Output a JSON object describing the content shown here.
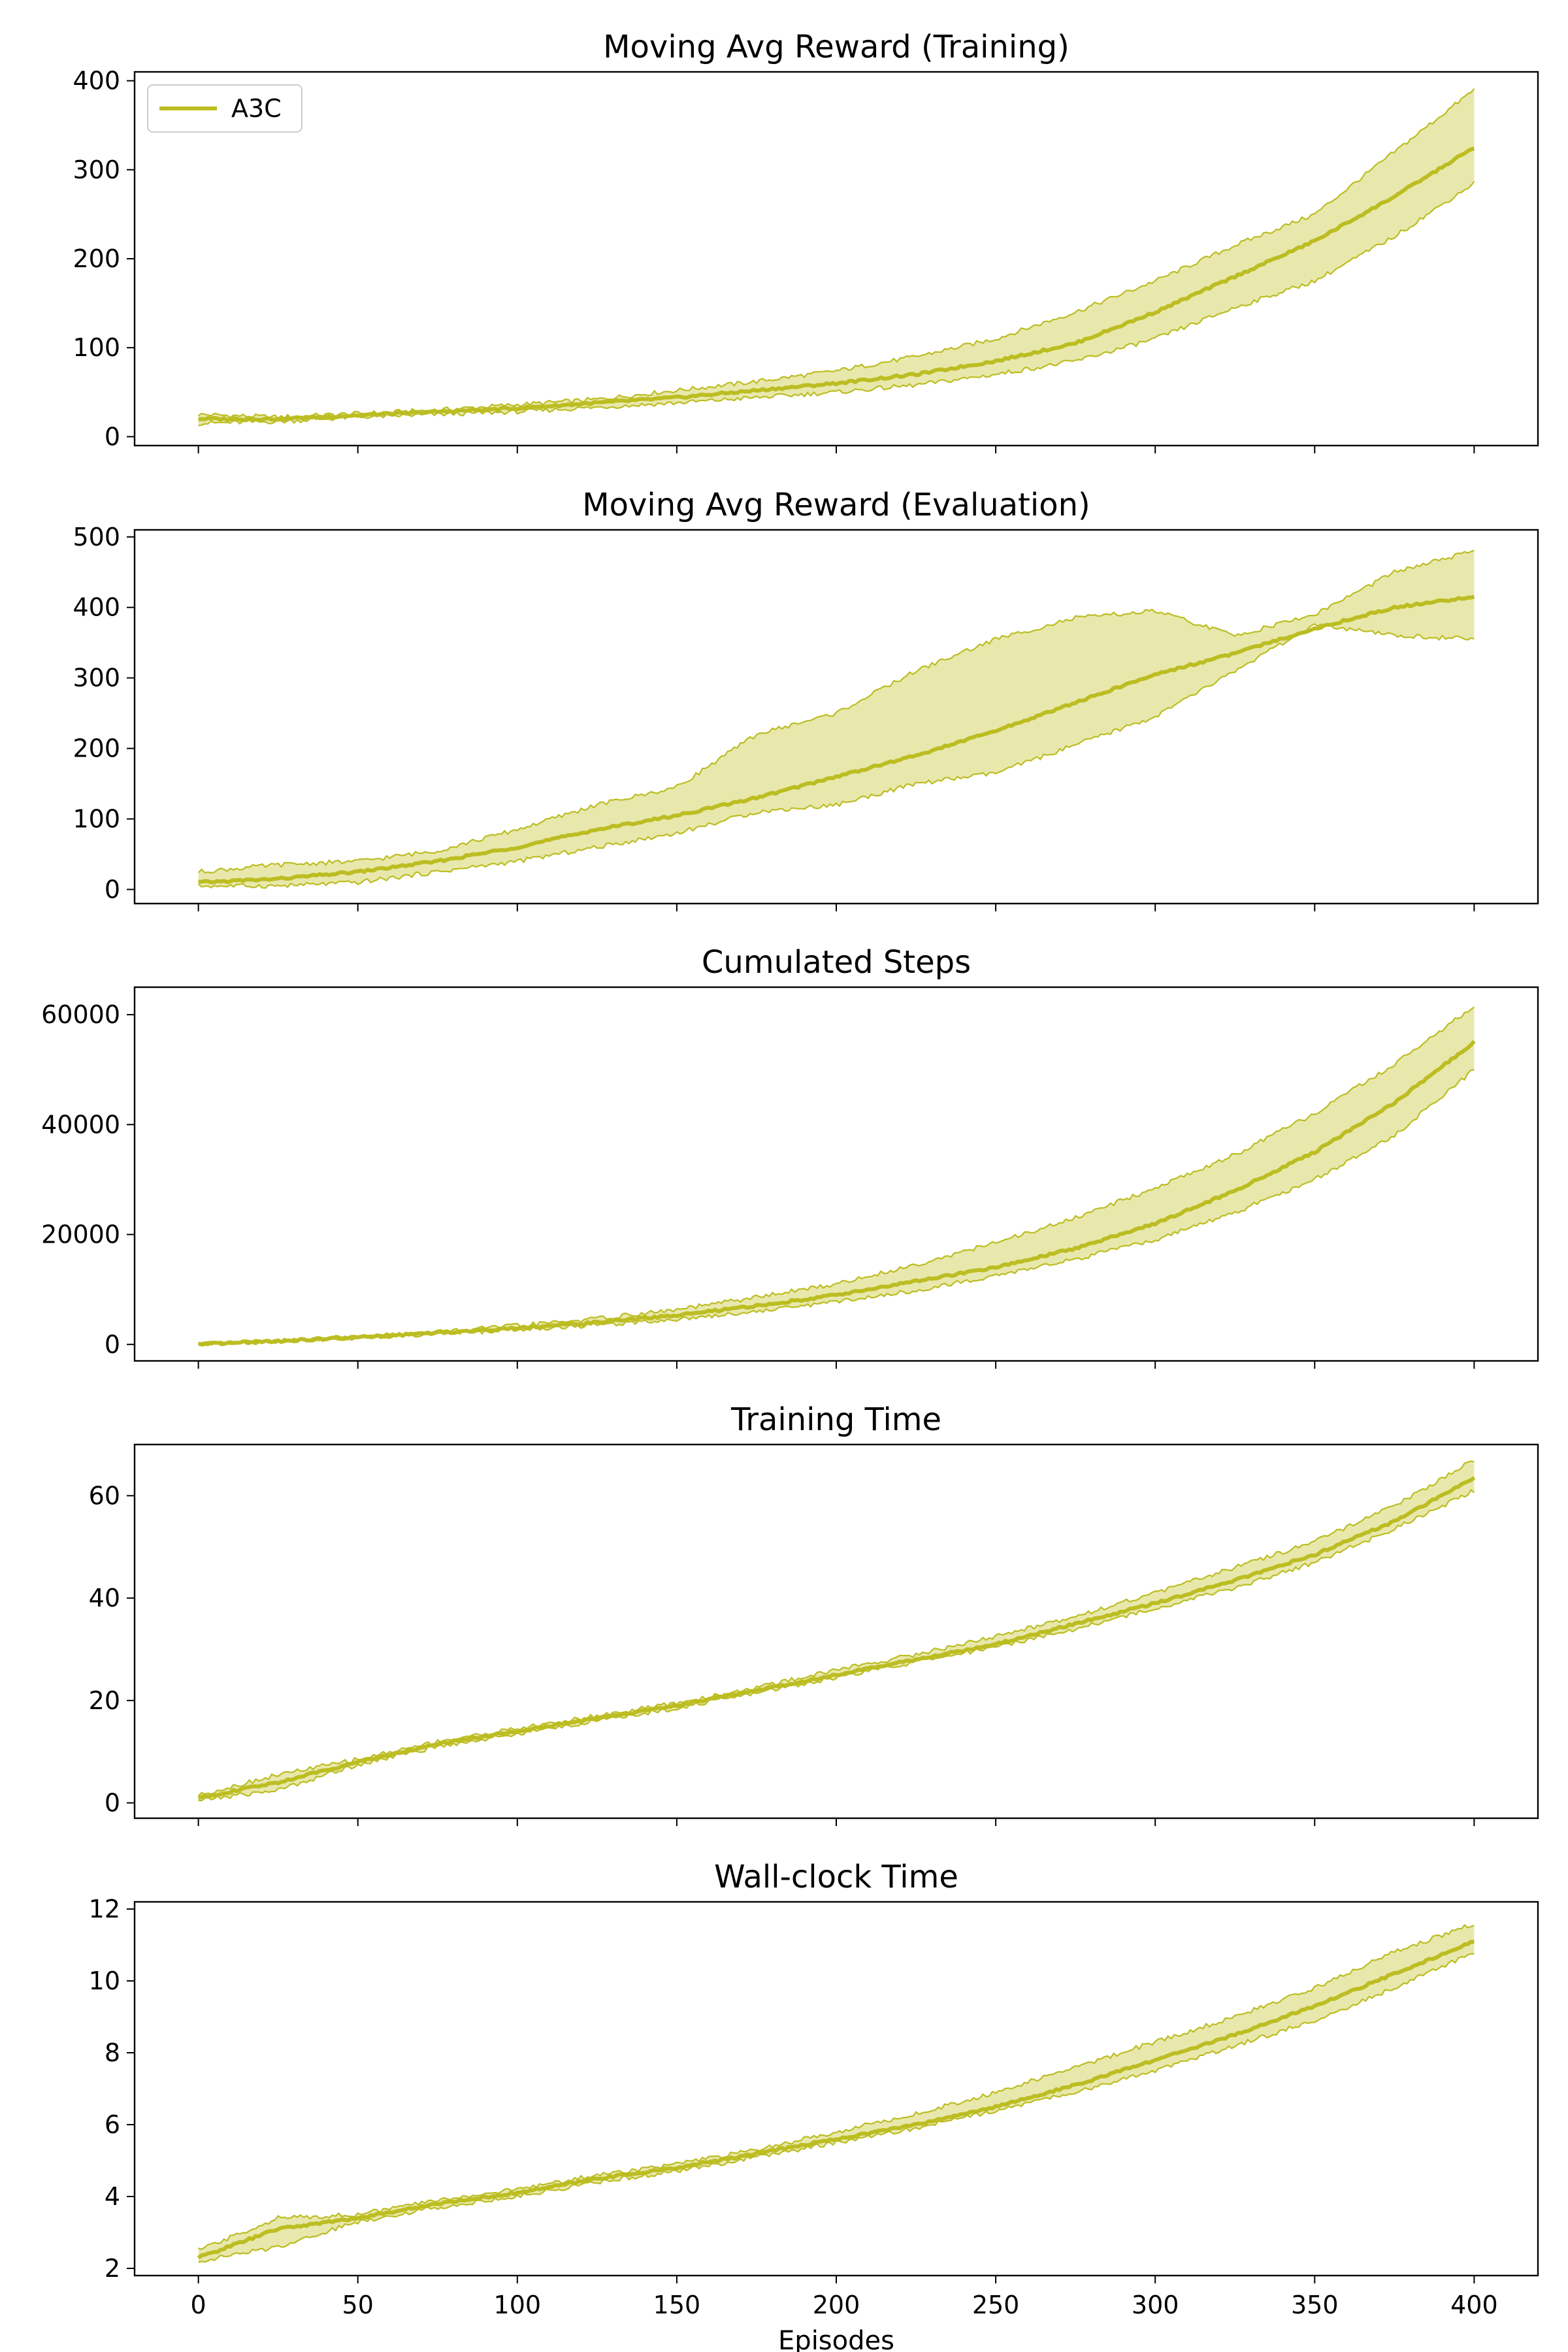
{
  "colors": {
    "series": "#bcbd22",
    "band": "#e8e8ad",
    "axis": "#000000"
  },
  "xlabel": "Episodes",
  "chart_data": [
    {
      "type": "line",
      "title": "Moving Avg Reward (Training)",
      "xlim": [
        -20,
        420
      ],
      "ylim": [
        -10,
        410
      ],
      "xticks": [
        0,
        50,
        100,
        150,
        200,
        250,
        300,
        350,
        400
      ],
      "yticks": [
        0,
        100,
        200,
        300,
        400
      ],
      "legend": {
        "location": "upper-left",
        "entries": [
          "A3C"
        ]
      },
      "series": [
        {
          "name": "A3C",
          "x": [
            0,
            25,
            50,
            75,
            100,
            125,
            150,
            175,
            200,
            225,
            250,
            275,
            300,
            325,
            350,
            375,
            400
          ],
          "mean": [
            20,
            20,
            24,
            28,
            32,
            38,
            44,
            52,
            60,
            70,
            85,
            105,
            140,
            180,
            220,
            270,
            325
          ],
          "upper": [
            25,
            22,
            26,
            30,
            36,
            42,
            52,
            62,
            74,
            90,
            110,
            140,
            175,
            215,
            250,
            320,
            390
          ],
          "lower": [
            15,
            17,
            22,
            25,
            28,
            33,
            38,
            44,
            50,
            58,
            70,
            85,
            110,
            145,
            175,
            225,
            285
          ]
        }
      ]
    },
    {
      "type": "line",
      "title": "Moving Avg Reward (Evaluation)",
      "xlim": [
        -20,
        420
      ],
      "ylim": [
        -20,
        510
      ],
      "xticks": [
        0,
        50,
        100,
        150,
        200,
        250,
        300,
        350,
        400
      ],
      "yticks": [
        0,
        100,
        200,
        300,
        400,
        500
      ],
      "series": [
        {
          "name": "A3C",
          "x": [
            0,
            25,
            50,
            75,
            100,
            125,
            150,
            175,
            200,
            225,
            250,
            275,
            300,
            325,
            350,
            375,
            400
          ],
          "mean": [
            10,
            15,
            25,
            40,
            60,
            85,
            105,
            130,
            160,
            190,
            225,
            265,
            305,
            335,
            370,
            400,
            415
          ],
          "upper": [
            25,
            35,
            40,
            55,
            85,
            120,
            145,
            220,
            250,
            310,
            355,
            385,
            395,
            360,
            390,
            450,
            480
          ],
          "lower": [
            5,
            5,
            10,
            25,
            40,
            60,
            80,
            110,
            120,
            150,
            165,
            205,
            245,
            310,
            375,
            360,
            355
          ]
        }
      ]
    },
    {
      "type": "line",
      "title": "Cumulated Steps",
      "xlim": [
        -20,
        420
      ],
      "ylim": [
        -3000,
        65000
      ],
      "xticks": [
        0,
        50,
        100,
        150,
        200,
        250,
        300,
        350,
        400
      ],
      "yticks": [
        0,
        20000,
        40000,
        60000
      ],
      "series": [
        {
          "name": "A3C",
          "x": [
            0,
            25,
            50,
            75,
            100,
            125,
            150,
            175,
            200,
            225,
            250,
            275,
            300,
            325,
            350,
            375,
            400
          ],
          "mean": [
            0,
            600,
            1300,
            2100,
            3000,
            4000,
            5300,
            7000,
            9000,
            11500,
            14000,
            17500,
            22000,
            28000,
            35000,
            44000,
            55000
          ],
          "upper": [
            0,
            700,
            1400,
            2300,
            3400,
            4700,
            6300,
            8600,
            11000,
            14500,
            18500,
            23000,
            28500,
            34500,
            42000,
            51000,
            61500
          ],
          "lower": [
            0,
            500,
            1200,
            1900,
            2700,
            3500,
            4600,
            6000,
            7800,
            9800,
            12500,
            15500,
            19000,
            24000,
            30000,
            38000,
            50000
          ]
        }
      ]
    },
    {
      "type": "line",
      "title": "Training Time",
      "xlim": [
        -20,
        420
      ],
      "ylim": [
        -3,
        70
      ],
      "xticks": [
        0,
        50,
        100,
        150,
        200,
        250,
        300,
        350,
        400
      ],
      "yticks": [
        0,
        20,
        40,
        60
      ],
      "series": [
        {
          "name": "A3C",
          "x": [
            0,
            25,
            50,
            75,
            100,
            125,
            150,
            175,
            200,
            225,
            250,
            275,
            300,
            325,
            350,
            375,
            400
          ],
          "mean": [
            1,
            4,
            8,
            11.5,
            14,
            16.5,
            19,
            22,
            25,
            28,
            31,
            35,
            39,
            43.5,
            48.5,
            55,
            63.5
          ],
          "upper": [
            1.5,
            5.5,
            8.5,
            12,
            14.5,
            17,
            19.5,
            22.5,
            26,
            29,
            32.5,
            36.5,
            41,
            46,
            51,
            58,
            67
          ],
          "lower": [
            0.5,
            2.5,
            7.5,
            11,
            13.5,
            16,
            18.5,
            21.5,
            24.5,
            27.5,
            30.5,
            34,
            38,
            42,
            47,
            53.5,
            61
          ]
        }
      ]
    },
    {
      "type": "line",
      "title": "Wall-clock Time",
      "xlim": [
        -20,
        420
      ],
      "ylim": [
        1.8,
        12.2
      ],
      "xticks": [
        0,
        50,
        100,
        150,
        200,
        250,
        300,
        350,
        400
      ],
      "yticks": [
        2,
        4,
        6,
        8,
        10,
        12
      ],
      "xticklabels": [
        "0",
        "50",
        "100",
        "150",
        "200",
        "250",
        "300",
        "350",
        "400"
      ],
      "series": [
        {
          "name": "A3C",
          "x": [
            0,
            25,
            50,
            75,
            100,
            125,
            150,
            175,
            200,
            225,
            250,
            275,
            300,
            325,
            350,
            375,
            400
          ],
          "mean": [
            2.3,
            3.1,
            3.4,
            3.8,
            4.1,
            4.5,
            4.8,
            5.2,
            5.6,
            6.0,
            6.5,
            7.1,
            7.8,
            8.5,
            9.3,
            10.2,
            11.1
          ],
          "upper": [
            2.5,
            3.4,
            3.5,
            3.9,
            4.2,
            4.6,
            4.9,
            5.3,
            5.8,
            6.3,
            6.9,
            7.6,
            8.3,
            9.0,
            9.8,
            10.8,
            11.6
          ],
          "lower": [
            2.2,
            2.6,
            3.3,
            3.7,
            4.0,
            4.4,
            4.7,
            5.1,
            5.5,
            5.9,
            6.4,
            6.9,
            7.5,
            8.2,
            8.9,
            9.8,
            10.8
          ]
        }
      ]
    }
  ]
}
